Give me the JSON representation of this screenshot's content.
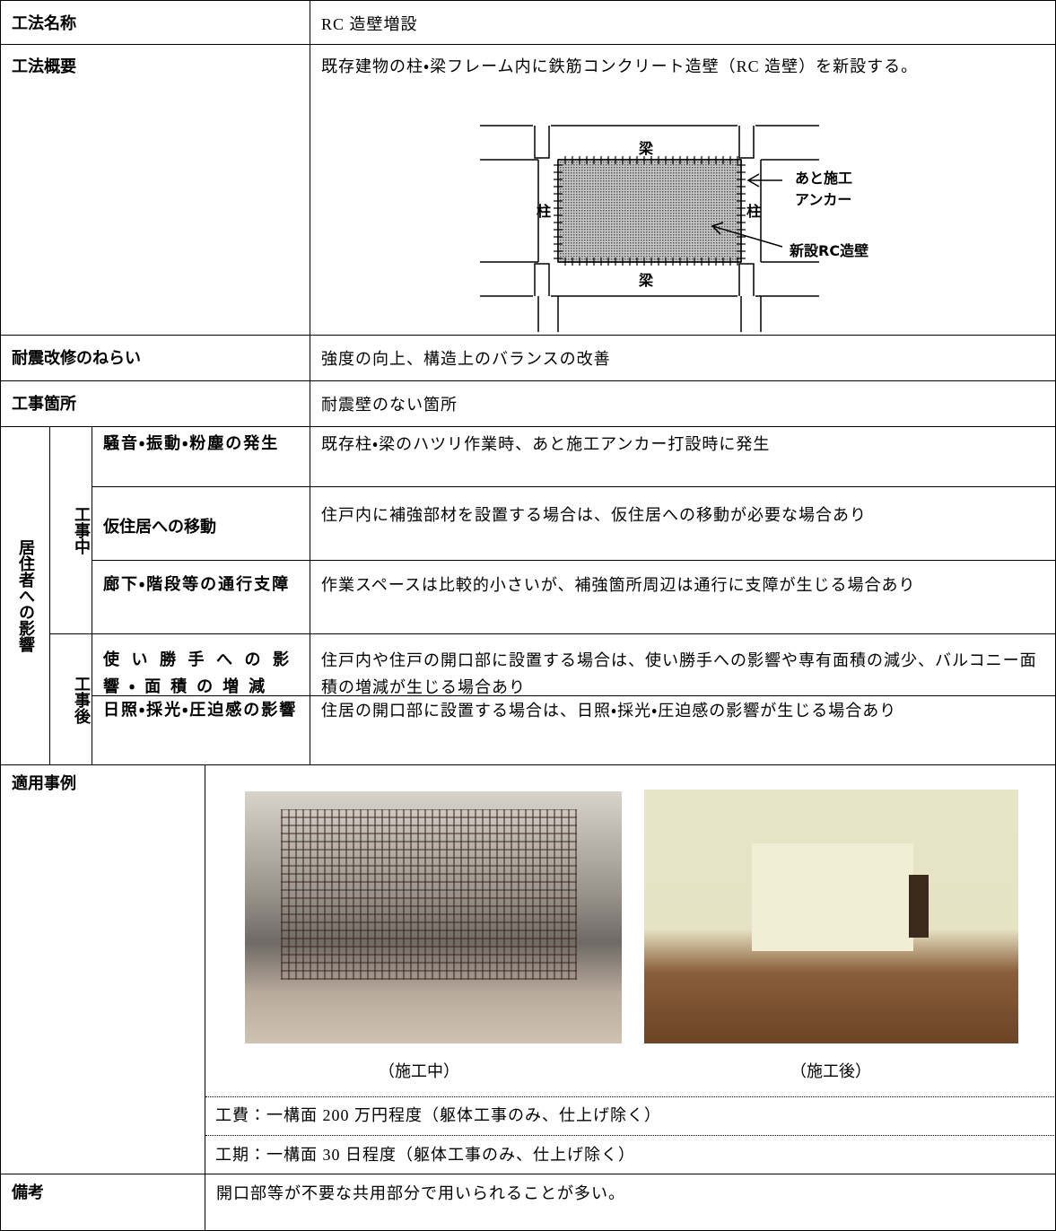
{
  "method_name": {
    "label": "工法名称",
    "value": "RC 造壁増設"
  },
  "overview": {
    "label": "工法概要",
    "text": "既存建物の柱・梁フレーム内に鉄筋コンクリート造壁（RC 造壁）を新設する。",
    "diagram": {
      "beam_top": "梁",
      "beam_bottom": "梁",
      "column_left": "柱",
      "column_right": "柱",
      "anchor": [
        "あと施工",
        "アンカー"
      ],
      "wall": "新設RC造壁"
    }
  },
  "aim": {
    "label": "耐震改修のねらい",
    "value": "強度の向上、構造上のバランスの改善"
  },
  "location": {
    "label": "工事箇所",
    "value": "耐震壁のない箇所"
  },
  "impact": {
    "label": "居住者への影響",
    "during": {
      "label": "工事中",
      "items": [
        {
          "label": "騒音・振動・粉塵の発生",
          "text": "既存柱・梁のハツリ作業時、あと施工アンカー打設時に発生"
        },
        {
          "label": "仮住居への移動",
          "text": "住戸内に補強部材を設置する場合は、仮住居への移動が必要な場合あり"
        },
        {
          "label": "廊下・階段等の通行支障",
          "text": "作業スペースは比較的小さいが、補強箇所周辺は通行に支障が生じる場合あり"
        }
      ]
    },
    "after": {
      "label": "工事後",
      "items": [
        {
          "label": "使い勝手への影響・面積の増減",
          "text": "住戸内や住戸の開口部に設置する場合は、使い勝手への影響や専有面積の減少、バルコニー面積の増減が生じる場合あり"
        },
        {
          "label": "日照・採光・圧迫感の影響",
          "text": "住居の開口部に設置する場合は、日照・採光・圧迫感の影響が生じる場合あり"
        }
      ]
    }
  },
  "examples": {
    "label": "適用事例",
    "photo_captions": [
      "（施工中）",
      "（施工後）"
    ],
    "cost": "工費：一構面 200 万円程度（躯体工事のみ、仕上げ除く）",
    "period": "工期：一構面 30 日程度（躯体工事のみ、仕上げ除く）"
  },
  "remarks": {
    "label": "備考",
    "value": "開口部等が不要な共用部分で用いられることが多い。"
  }
}
